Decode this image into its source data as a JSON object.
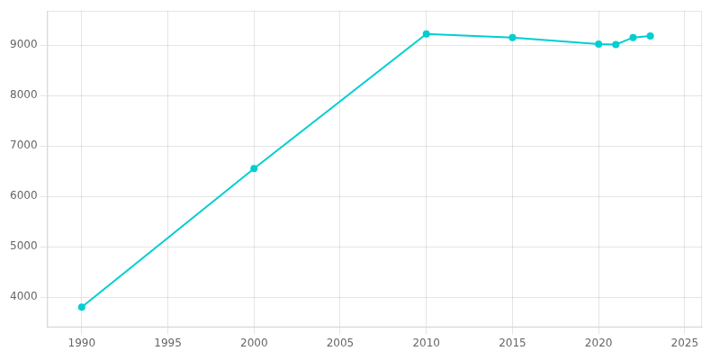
{
  "chart_data": {
    "type": "line",
    "x": [
      1990,
      2000,
      2010,
      2015,
      2020,
      2021,
      2022,
      2023
    ],
    "values": [
      3800,
      6550,
      9220,
      9150,
      9020,
      9010,
      9150,
      9180
    ],
    "color": "#00CED1",
    "marker": "circle",
    "xlim": [
      1988,
      2026
    ],
    "xticks": [
      1990,
      1995,
      2000,
      2005,
      2010,
      2015,
      2020,
      2025
    ],
    "ylim": [
      3400,
      9680
    ],
    "yticks": [
      4000,
      5000,
      6000,
      7000,
      8000,
      9000
    ],
    "grid": true
  }
}
